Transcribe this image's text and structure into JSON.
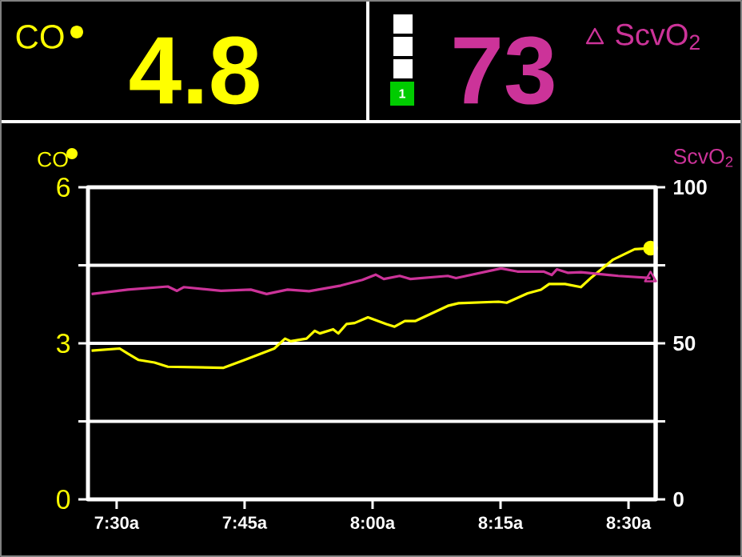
{
  "chart_data": {
    "type": "line",
    "ylabel": "CO",
    "y2label": "ScvO$_{2}$",
    "annotations": [
      "CO",
      "4.8",
      "1",
      "73",
      "ScvO$_{2}$"
    ],
    "xlim": [
      7.444,
      8.553
    ],
    "xticks": [
      {
        "value": 7.5,
        "label": "7:30a"
      },
      {
        "value": 7.75,
        "label": "7:45a"
      },
      {
        "value": 8.0,
        "label": "8:00a"
      },
      {
        "value": 8.25,
        "label": "8:15a"
      },
      {
        "value": 8.5,
        "label": "8:30a"
      }
    ],
    "ylim": [
      0,
      6
    ],
    "yticks": [
      0,
      {
        "value": 1.5,
        "label": null
      },
      3,
      {
        "value": 4.5,
        "label": null
      },
      6
    ],
    "y2lim": [
      0,
      100
    ],
    "y2ticks": [
      0,
      {
        "value": 25,
        "label": null
      },
      50,
      {
        "value": 75,
        "label": null
      },
      100
    ],
    "grid": "y",
    "line_style": "solid",
    "series": [
      {
        "color": "#ffff00",
        "x": [
          7.451,
          7.506,
          7.522,
          7.543,
          7.574,
          7.6,
          7.709,
          7.75,
          7.808,
          7.829,
          7.84,
          7.871,
          7.887,
          7.897,
          7.923,
          7.933,
          7.949,
          7.965,
          7.991,
          8.027,
          8.043,
          8.063,
          8.084,
          8.147,
          8.168,
          8.246,
          8.262,
          8.303,
          8.329,
          8.345,
          8.376,
          8.407,
          8.428,
          8.47,
          8.512,
          8.543
        ],
        "values": [
          2.86,
          2.9,
          2.8,
          2.68,
          2.63,
          2.55,
          2.53,
          2.68,
          2.9,
          3.09,
          3.04,
          3.09,
          3.24,
          3.19,
          3.27,
          3.19,
          3.37,
          3.39,
          3.5,
          3.37,
          3.32,
          3.43,
          3.43,
          3.72,
          3.77,
          3.8,
          3.78,
          3.96,
          4.03,
          4.14,
          4.14,
          4.08,
          4.27,
          4.61,
          4.81,
          4.83
        ]
      },
      {
        "color": "#cc3399",
        "axis": "y2",
        "x": [
          7.451,
          7.522,
          7.6,
          7.618,
          7.631,
          7.704,
          7.762,
          7.793,
          7.834,
          7.876,
          7.938,
          7.98,
          8.006,
          8.022,
          8.053,
          8.074,
          8.147,
          8.163,
          8.251,
          8.283,
          8.334,
          8.35,
          8.36,
          8.381,
          8.407,
          8.48,
          8.543
        ],
        "values": [
          65.8,
          67.2,
          68.2,
          66.8,
          68.0,
          66.8,
          67.2,
          65.8,
          67.2,
          66.7,
          68.5,
          70.3,
          72.0,
          70.6,
          71.6,
          70.6,
          71.6,
          70.9,
          74.0,
          73.0,
          73.0,
          71.9,
          73.7,
          72.6,
          72.8,
          71.6,
          70.9
        ]
      }
    ]
  }
}
